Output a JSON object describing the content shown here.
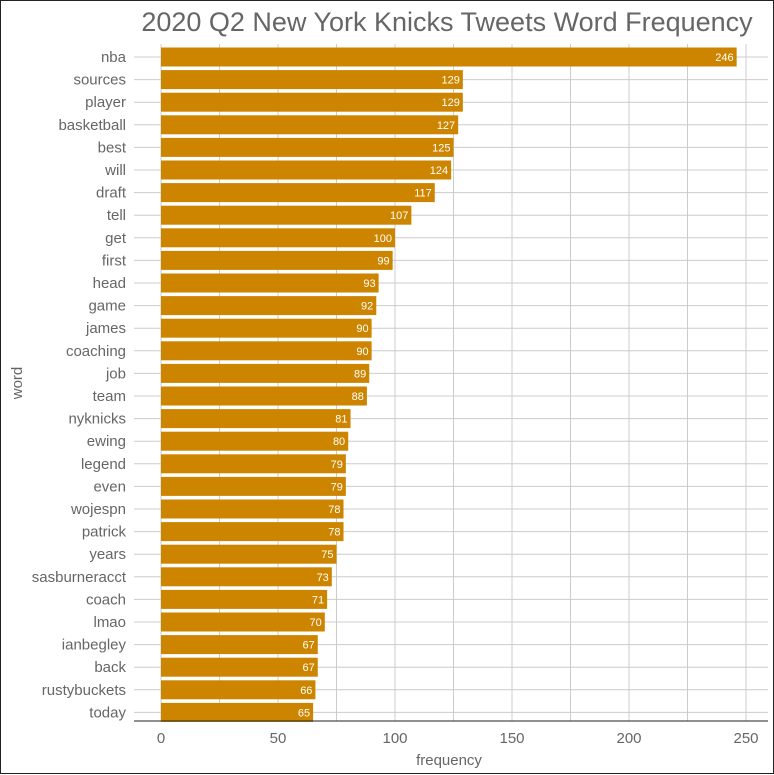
{
  "chart_data": {
    "type": "bar",
    "orientation": "horizontal",
    "title": "2020 Q2 New York Knicks Tweets Word Frequency",
    "xlabel": "frequency",
    "ylabel": "word",
    "xlim": [
      0,
      250
    ],
    "xticks": [
      0,
      50,
      100,
      150,
      200,
      250
    ],
    "grid": true,
    "categories": [
      "nba",
      "sources",
      "player",
      "basketball",
      "best",
      "will",
      "draft",
      "tell",
      "get",
      "first",
      "head",
      "game",
      "james",
      "coaching",
      "job",
      "team",
      "nyknicks",
      "ewing",
      "legend",
      "even",
      "wojespn",
      "patrick",
      "years",
      "sasburneracct",
      "coach",
      "lmao",
      "ianbegley",
      "back",
      "rustybuckets",
      "today"
    ],
    "values": [
      246,
      129,
      129,
      127,
      125,
      124,
      117,
      107,
      100,
      99,
      93,
      92,
      90,
      90,
      89,
      88,
      81,
      80,
      79,
      79,
      78,
      78,
      75,
      73,
      71,
      70,
      67,
      67,
      66,
      65
    ],
    "colors": {
      "bar": "#cd8500",
      "bar_label": "#ffffff",
      "text": "#666666",
      "grid": "#cccccc",
      "axis": "#222222"
    }
  }
}
